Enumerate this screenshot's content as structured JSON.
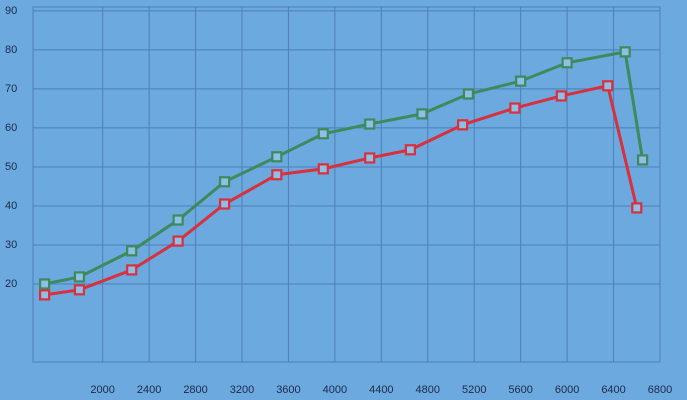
{
  "chart_data": {
    "type": "line",
    "series": [
      {
        "color": "#3d8a5c",
        "x": [
          1500,
          1800,
          2250,
          2650,
          3050,
          3500,
          3900,
          4300,
          4750,
          5150,
          5600,
          6000,
          6500,
          6650
        ],
        "values": [
          20,
          21.8,
          28.5,
          36.4,
          46.2,
          52.6,
          58.5,
          61,
          63.6,
          68.7,
          72,
          76.7,
          79.5,
          51.8
        ]
      },
      {
        "color": "#d8303c",
        "x": [
          1500,
          1800,
          2250,
          2650,
          3050,
          3500,
          3900,
          4300,
          4650,
          5100,
          5550,
          5950,
          6350,
          6600
        ],
        "values": [
          17.2,
          18.5,
          23.6,
          31,
          40.5,
          48,
          49.5,
          52.3,
          54.4,
          60.8,
          65.1,
          68.2,
          70.8,
          39.5
        ]
      }
    ],
    "xlim": [
      1400,
      6800
    ],
    "xticks": [
      2000,
      2400,
      2800,
      3200,
      3600,
      4000,
      4400,
      4800,
      5200,
      5600,
      6000,
      6400,
      6800
    ],
    "ylim": [
      0,
      91
    ],
    "yticks": [
      20,
      30,
      40,
      50,
      60,
      70,
      80,
      90
    ],
    "grid": true
  }
}
